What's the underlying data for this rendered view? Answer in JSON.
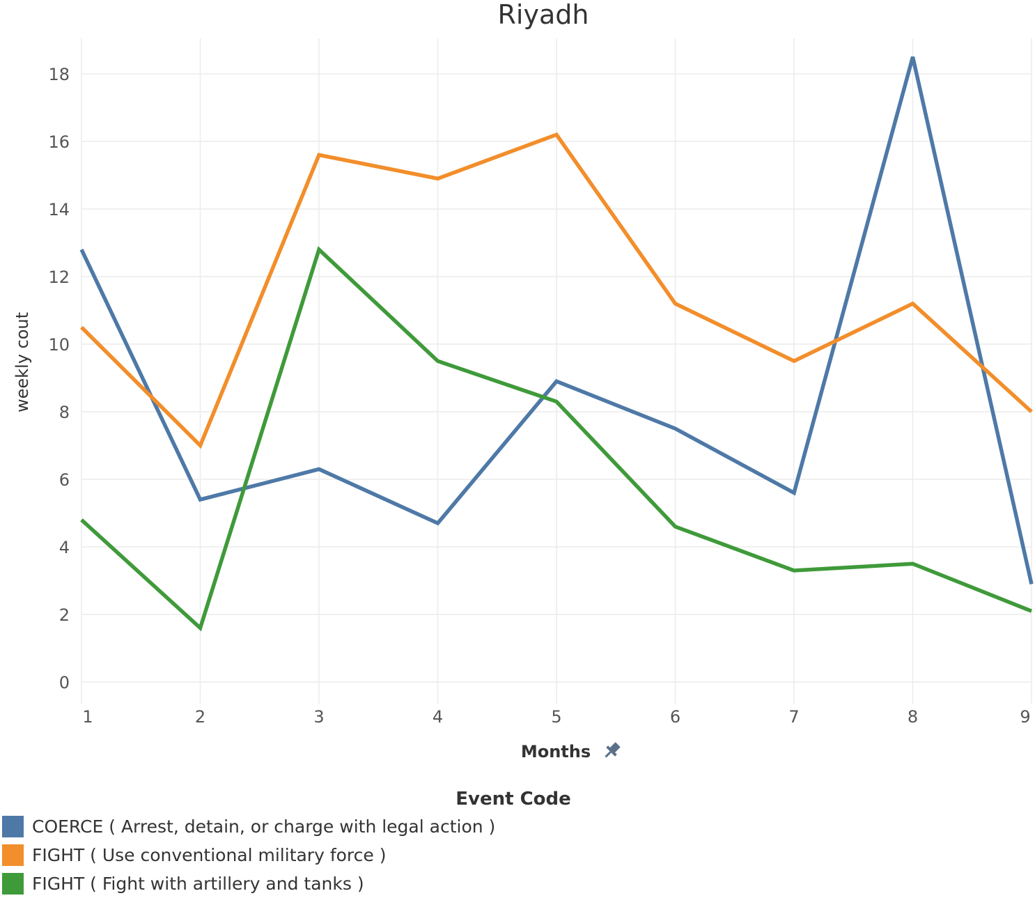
{
  "chart_data": {
    "type": "line",
    "title": "Riyadh",
    "xlabel": "Months",
    "ylabel": "weekly cout",
    "x": [
      1,
      2,
      3,
      4,
      5,
      6,
      7,
      8,
      9
    ],
    "x_tick_labels": [
      "1",
      "2",
      "3",
      "4",
      "5",
      "6",
      "7",
      "8",
      "9"
    ],
    "y_ticks": [
      0,
      2,
      4,
      6,
      8,
      10,
      12,
      14,
      16,
      18
    ],
    "y_tick_labels": [
      "0",
      "2",
      "4",
      "6",
      "8",
      "10",
      "12",
      "14",
      "16",
      "18"
    ],
    "xlim": [
      1,
      9
    ],
    "ylim": [
      -0.6,
      19.5
    ],
    "grid": true,
    "legend_title": "Event Code",
    "legend_position": "bottom-left",
    "series": [
      {
        "name": "COERCE ( Arrest, detain, or charge with legal action )",
        "color": "#4e79a7",
        "values": [
          12.8,
          5.4,
          6.3,
          4.7,
          8.9,
          7.5,
          5.6,
          18.5,
          2.9
        ]
      },
      {
        "name": "FIGHT ( Use conventional military force )",
        "color": "#f28e2b",
        "values": [
          10.5,
          7.0,
          15.6,
          14.9,
          16.2,
          11.2,
          9.5,
          11.2,
          8.0
        ]
      },
      {
        "name": "FIGHT ( Fight with artillery and tanks )",
        "color": "#3f9a3a",
        "values": [
          4.8,
          1.6,
          12.8,
          9.5,
          8.3,
          4.6,
          3.3,
          3.5,
          2.1
        ]
      }
    ]
  }
}
